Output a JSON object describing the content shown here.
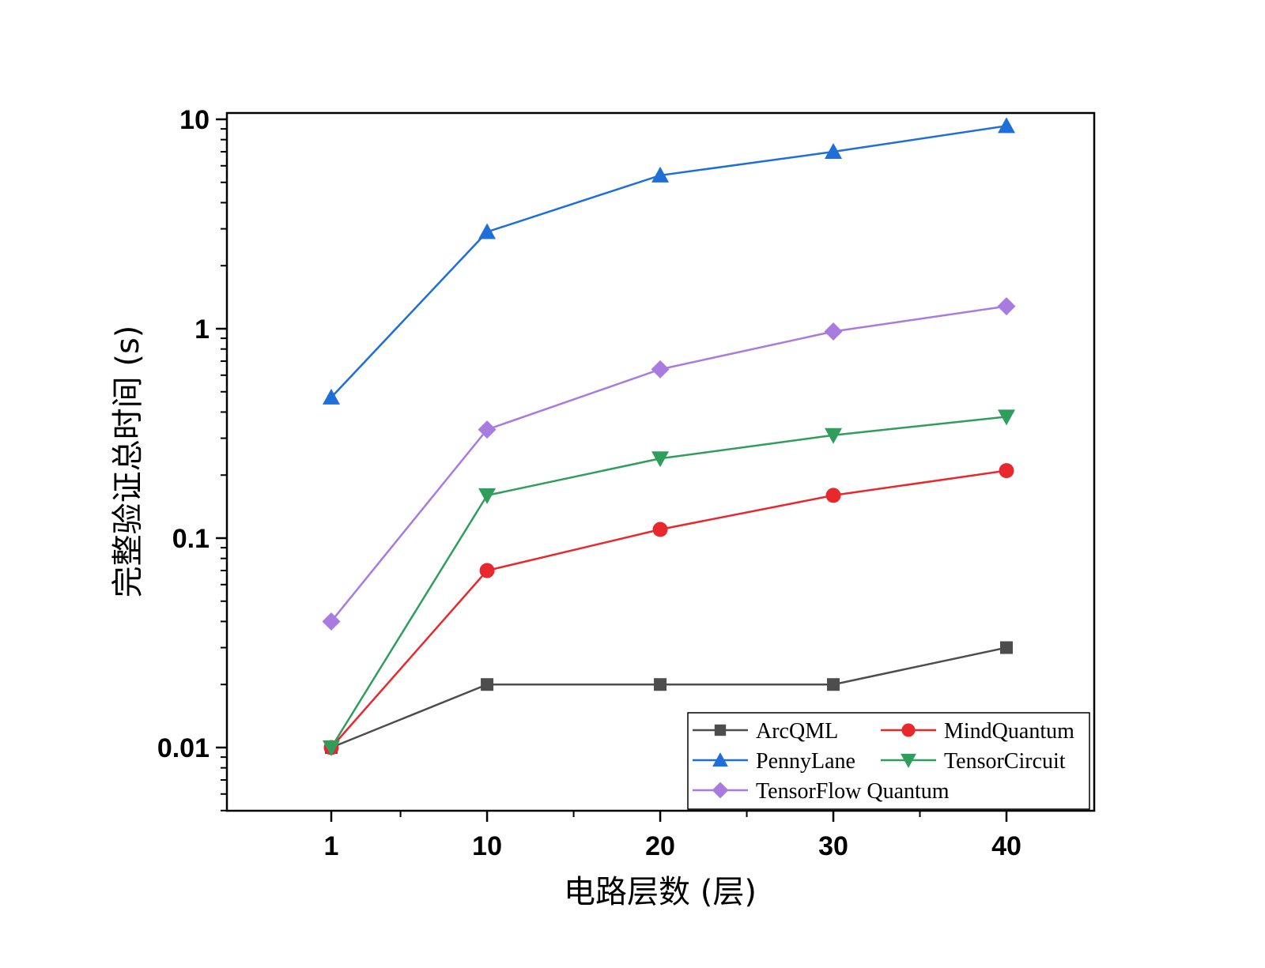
{
  "chart_data": {
    "type": "line",
    "title": "",
    "xlabel": "电路层数 (层)",
    "ylabel": "完整验证总时间 (s)",
    "yscale": "log",
    "ylim": [
      0.005,
      11
    ],
    "xlim": [
      -5,
      45
    ],
    "x_ticks": [
      1,
      10,
      20,
      30,
      40
    ],
    "x_tick_labels": [
      "1",
      "10",
      "20",
      "30",
      "40"
    ],
    "y_ticks": [
      0.01,
      0.1,
      1,
      10
    ],
    "y_tick_labels": [
      "0.01",
      "0.1",
      "1",
      "10"
    ],
    "x": [
      1,
      10,
      20,
      30,
      40
    ],
    "grid": false,
    "legend_position": "bottom-right",
    "series": [
      {
        "name": "ArcQML",
        "color": "#4d4d4d",
        "marker": "square",
        "values": [
          0.01,
          0.02,
          0.02,
          0.02,
          0.03
        ]
      },
      {
        "name": "MindQuantum",
        "color": "#e8282c",
        "marker": "circle",
        "values": [
          0.01,
          0.07,
          0.11,
          0.16,
          0.21
        ]
      },
      {
        "name": "PennyLane",
        "color": "#1f6fd8",
        "marker": "triangle-up",
        "values": [
          0.47,
          2.9,
          5.4,
          7.0,
          9.3
        ]
      },
      {
        "name": "TensorCircuit",
        "color": "#2f9e5c",
        "marker": "triangle-down",
        "values": [
          0.01,
          0.16,
          0.24,
          0.31,
          0.38
        ]
      },
      {
        "name": "TensorFlow Quantum",
        "color": "#a87be0",
        "marker": "diamond",
        "values": [
          0.04,
          0.33,
          0.64,
          0.97,
          1.28
        ]
      }
    ]
  }
}
